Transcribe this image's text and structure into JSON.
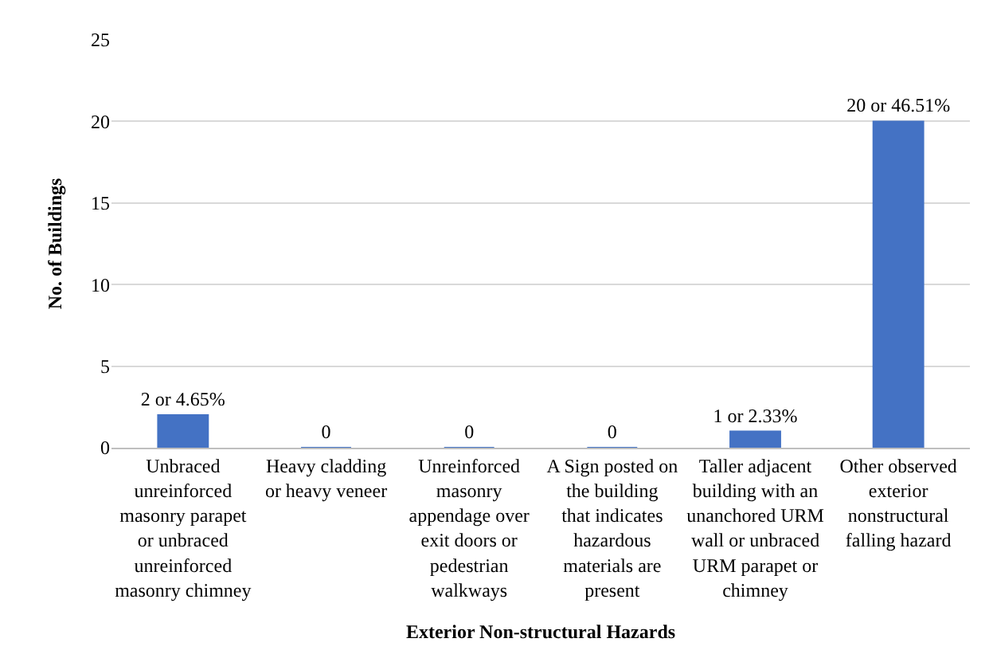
{
  "chart_data": {
    "type": "bar",
    "xlabel": "Exterior Non-structural Hazards",
    "ylabel": "No. of Buildings",
    "categories": [
      "Unbraced unreinforced masonry parapet or unbraced unreinforced masonry chimney",
      "Heavy cladding or heavy veneer",
      "Unreinforced masonry appendage over exit doors or pedestrian walkways",
      "A Sign posted on the building that indicates hazardous materials are present",
      "Taller adjacent building with an unanchored URM wall or unbraced URM parapet or chimney",
      "Other observed exterior nonstructural falling hazard"
    ],
    "values": [
      2,
      0,
      0,
      0,
      1,
      20
    ],
    "value_labels": [
      "2 or 4.65%",
      "0",
      "0",
      "0",
      "1 or 2.33%",
      "20 or 46.51%"
    ],
    "color": "#4472c4",
    "ylim": [
      0,
      25
    ],
    "yticks": [
      0,
      5,
      10,
      15,
      20,
      25
    ],
    "grid": "y",
    "legend": false
  }
}
